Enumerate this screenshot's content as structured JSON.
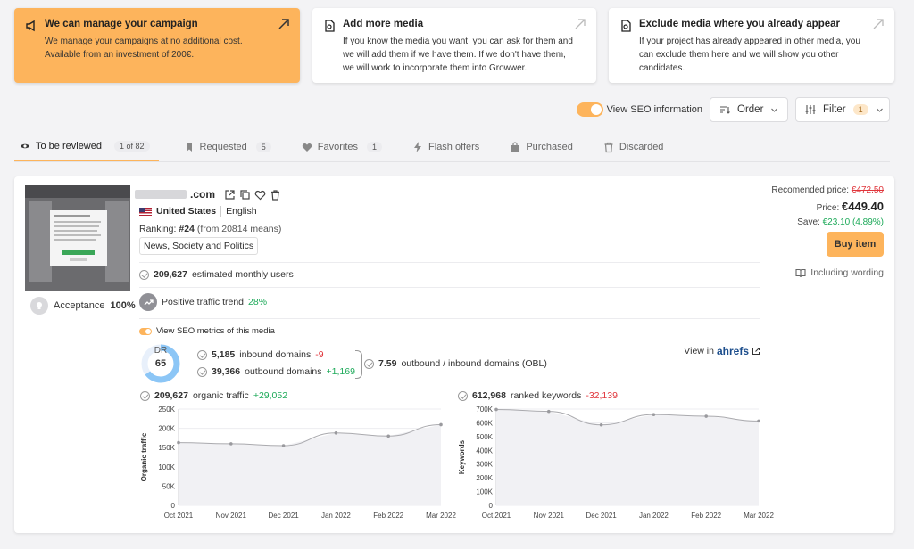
{
  "colors": {
    "accent": "#fdb45c",
    "green": "#1eaa5a",
    "red": "#e0353b"
  },
  "promo_cards": [
    {
      "title": "We can manage your campaign",
      "desc_lines": [
        "We manage your campaigns at no additional cost.",
        "Available from an investment of 200€."
      ],
      "icon": "megaphone-icon"
    },
    {
      "title": "Add more media",
      "desc_lines": [
        "If you know the media you want, you can ask for them and",
        "we will add them if we have them. If we don't have them,",
        "we will work to incorporate them into Growwer."
      ],
      "icon": "add-media-icon"
    },
    {
      "title": "Exclude media where you already appear",
      "desc_lines": [
        "If your project has already appeared in other media, you",
        "can exclude them here and we will show you other",
        "candidates."
      ],
      "icon": "exclude-media-icon"
    }
  ],
  "toolbar": {
    "seo_label": "View SEO information",
    "order_label": "Order",
    "filter_label": "Filter",
    "filter_count": "1"
  },
  "tabs": [
    {
      "label": "To be reviewed",
      "count": "1 of 82",
      "icon": "eye-icon"
    },
    {
      "label": "Requested",
      "count": "5",
      "icon": "bookmark-icon"
    },
    {
      "label": "Favorites",
      "count": "1",
      "icon": "heart-icon"
    },
    {
      "label": "Flash offers",
      "count": "",
      "icon": "lightning-icon"
    },
    {
      "label": "Purchased",
      "count": "",
      "icon": "bag-icon"
    },
    {
      "label": "Discarded",
      "count": "",
      "icon": "trash-icon"
    }
  ],
  "media": {
    "domain_tld": ".com",
    "country": "United States",
    "language": "English",
    "ranking_label": "Ranking:",
    "ranking_value": "#24",
    "ranking_note": "(from 20814 means)",
    "category": "News, Society and Politics",
    "monthly_users_value": "209,627",
    "monthly_users_label": "estimated monthly users",
    "trend_label": "Positive traffic trend",
    "trend_value": "28%",
    "acceptance_label": "Acceptance",
    "acceptance_value": "100%"
  },
  "pricing": {
    "recommended_label": "Recomended price:",
    "recommended_value": "€472.50",
    "price_label": "Price:",
    "price_value": "€449.40",
    "save_label": "Save:",
    "save_value": "€23.10 (4.89%)",
    "buy_label": "Buy item",
    "wording_label": "Including wording"
  },
  "seo": {
    "toggle_label": "View SEO metrics of this media",
    "dr_label": "DR",
    "dr_value": 65,
    "inbound_value": "5,185",
    "inbound_label": "inbound domains",
    "inbound_delta": "-9",
    "outbound_value": "39,366",
    "outbound_label": "outbound domains",
    "outbound_delta": "+1,169",
    "obl_value": "7.59",
    "obl_label": "outbound / inbound domains (OBL)",
    "view_in_label": "View in",
    "ahrefs_a": "a",
    "ahrefs_rest": "hrefs"
  },
  "chart_data": [
    {
      "type": "line",
      "title_value": "209,627",
      "title_label": "organic traffic",
      "title_delta": "+29,052",
      "ylabel": "Organic traffic",
      "categories": [
        "Oct 2021",
        "Nov 2021",
        "Dec 2021",
        "Jan 2022",
        "Feb 2022",
        "Mar 2022"
      ],
      "values": [
        163000,
        160000,
        155000,
        188000,
        180000,
        209627
      ],
      "yticks": [
        "0",
        "50K",
        "100K",
        "150K",
        "200K",
        "250K"
      ],
      "ylim": [
        0,
        250000
      ]
    },
    {
      "type": "line",
      "title_value": "612,968",
      "title_label": "ranked keywords",
      "title_delta": "-32,139",
      "ylabel": "Keywords",
      "categories": [
        "Oct 2021",
        "Nov 2021",
        "Dec 2021",
        "Jan 2022",
        "Feb 2022",
        "Mar 2022"
      ],
      "values": [
        697000,
        683000,
        585000,
        660000,
        648000,
        612968
      ],
      "yticks": [
        "0",
        "100K",
        "200K",
        "300K",
        "400K",
        "500K",
        "600K",
        "700K"
      ],
      "ylim": [
        0,
        700000
      ]
    }
  ]
}
